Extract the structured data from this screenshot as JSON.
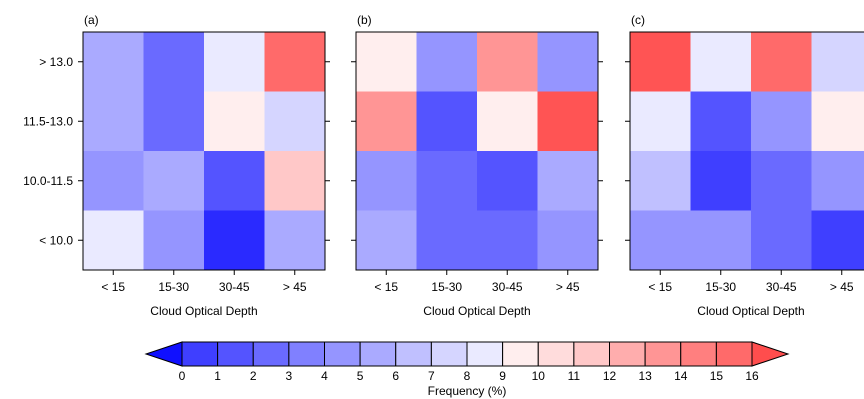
{
  "figure": {
    "panel_labels": [
      "(a)",
      "(b)",
      "(c)"
    ],
    "x_tick_labels": [
      "< 15",
      "15-30",
      "30-45",
      "> 45"
    ],
    "y_tick_labels": [
      "> 13.0",
      "11.5-13.0",
      "10.0-11.5",
      "< 10.0"
    ],
    "xlabel": "Cloud Optical Depth"
  },
  "colorbar": {
    "label": "Frequency (%)",
    "ticks": [
      "0",
      "1",
      "2",
      "3",
      "4",
      "5",
      "6",
      "7",
      "8",
      "9",
      "10",
      "11",
      "12",
      "13",
      "14",
      "15",
      "16"
    ],
    "colors": [
      "#2a2aff",
      "#3f3fff",
      "#5454ff",
      "#6a6aff",
      "#8080ff",
      "#9595ff",
      "#aaaaff",
      "#c0c0ff",
      "#d5d5ff",
      "#eaeaff",
      "#ffeeee",
      "#ffdcdc",
      "#ffc8c8",
      "#ffadad",
      "#ff9595",
      "#ff7f7f",
      "#ff6a6a",
      "#ff5454"
    ],
    "under_color": "#1010ff",
    "over_color": "#ff4d4d"
  },
  "chart_data": [
    {
      "type": "heatmap",
      "title": "(a)",
      "xlabel": "Cloud Optical Depth",
      "ylabel": "",
      "x_categories": [
        "< 15",
        "15-30",
        "30-45",
        "> 45"
      ],
      "y_categories": [
        "> 13.0",
        "11.5-13.0",
        "10.0-11.5",
        "< 10.0"
      ],
      "color_scale": {
        "min": 0,
        "max": 16,
        "step": 1
      },
      "values": [
        [
          5.5,
          3.5,
          8.5,
          14.5
        ],
        [
          5.5,
          3.5,
          9.5,
          7.5
        ],
        [
          4.5,
          5.5,
          2.5,
          11.5
        ],
        [
          8.5,
          4.5,
          0.5,
          5.5
        ]
      ]
    },
    {
      "type": "heatmap",
      "title": "(b)",
      "xlabel": "Cloud Optical Depth",
      "ylabel": "",
      "x_categories": [
        "< 15",
        "15-30",
        "30-45",
        "> 45"
      ],
      "y_categories": [
        "> 13.0",
        "11.5-13.0",
        "10.0-11.5",
        "< 10.0"
      ],
      "color_scale": {
        "min": 0,
        "max": 16,
        "step": 1
      },
      "values": [
        [
          9.5,
          4.5,
          12.5,
          4.5
        ],
        [
          12.5,
          2.5,
          9.5,
          15.5
        ],
        [
          4.5,
          3.5,
          2.5,
          5.5
        ],
        [
          5.5,
          3.5,
          3.5,
          4.5
        ]
      ]
    },
    {
      "type": "heatmap",
      "title": "(c)",
      "xlabel": "Cloud Optical Depth",
      "ylabel": "",
      "x_categories": [
        "< 15",
        "15-30",
        "30-45",
        "> 45"
      ],
      "y_categories": [
        "> 13.0",
        "11.5-13.0",
        "10.0-11.5",
        "< 10.0"
      ],
      "color_scale": {
        "min": 0,
        "max": 16,
        "step": 1
      },
      "values": [
        [
          15.5,
          8.5,
          14.5,
          7.5
        ],
        [
          8.5,
          2.5,
          4.5,
          9.5
        ],
        [
          6.5,
          1.5,
          3.5,
          4.5
        ],
        [
          4.5,
          4.5,
          3.5,
          1.5
        ]
      ]
    }
  ]
}
